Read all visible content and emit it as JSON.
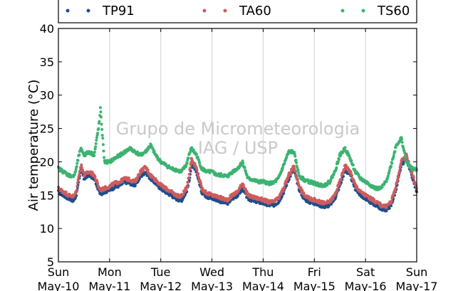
{
  "watermark": {
    "line1": "Grupo de Micrometeorologia",
    "line2": "IAG / USP"
  },
  "chart_data": {
    "type": "scatter",
    "title": "",
    "xlabel": "",
    "ylabel": "Air temperature (°C)",
    "ylim": [
      5,
      40
    ],
    "yticks": [
      5,
      10,
      15,
      20,
      25,
      30,
      35,
      40
    ],
    "xlim": [
      0,
      7
    ],
    "x_unit": "days",
    "xticks": [
      {
        "day": "Sun",
        "date": "May-10"
      },
      {
        "day": "Mon",
        "date": "May-11"
      },
      {
        "day": "Tue",
        "date": "May-12"
      },
      {
        "day": "Wed",
        "date": "May-13"
      },
      {
        "day": "Thu",
        "date": "May-14"
      },
      {
        "day": "Fri",
        "date": "May-15"
      },
      {
        "day": "Sat",
        "date": "May-16"
      },
      {
        "day": "Sun",
        "date": "May-17"
      }
    ],
    "grid": "vertical",
    "legend_position": "top",
    "series": [
      {
        "name": "TP91",
        "color": "#1f4e8c",
        "x": [
          0.0,
          0.1,
          0.2,
          0.3,
          0.35,
          0.4,
          0.45,
          0.5,
          0.6,
          0.7,
          0.8,
          0.85,
          0.9,
          1.0,
          1.1,
          1.2,
          1.3,
          1.4,
          1.5,
          1.6,
          1.7,
          1.8,
          1.9,
          2.0,
          2.1,
          2.2,
          2.3,
          2.4,
          2.5,
          2.55,
          2.6,
          2.7,
          2.8,
          2.9,
          3.0,
          3.1,
          3.2,
          3.3,
          3.4,
          3.5,
          3.6,
          3.7,
          3.8,
          3.9,
          4.0,
          4.1,
          4.2,
          4.3,
          4.4,
          4.5,
          4.6,
          4.7,
          4.8,
          4.9,
          5.0,
          5.1,
          5.2,
          5.3,
          5.4,
          5.5,
          5.6,
          5.7,
          5.8,
          5.9,
          6.0,
          6.1,
          6.2,
          6.3,
          6.4,
          6.5,
          6.6,
          6.7,
          6.8,
          6.9,
          7.0
        ],
        "y": [
          15.5,
          15.0,
          14.5,
          14.2,
          15.0,
          17.5,
          19.0,
          17.5,
          18.0,
          17.5,
          15.5,
          15.3,
          15.5,
          15.8,
          16.2,
          16.5,
          17.0,
          16.8,
          16.5,
          17.8,
          18.5,
          17.5,
          16.8,
          16.0,
          15.5,
          15.0,
          14.5,
          14.2,
          15.5,
          17.0,
          19.5,
          18.5,
          15.5,
          14.8,
          14.5,
          14.3,
          14.0,
          13.8,
          14.5,
          15.0,
          16.0,
          14.5,
          14.2,
          14.0,
          13.8,
          13.5,
          13.5,
          14.0,
          15.5,
          17.5,
          19.0,
          16.0,
          14.5,
          14.0,
          13.8,
          13.5,
          13.3,
          13.5,
          14.5,
          16.5,
          18.8,
          18.0,
          16.0,
          15.0,
          14.5,
          14.0,
          13.5,
          13.0,
          12.8,
          13.5,
          16.0,
          19.5,
          20.5,
          18.0,
          15.5
        ]
      },
      {
        "name": "TA60",
        "color": "#cd5c5c",
        "x": [
          0.0,
          0.1,
          0.2,
          0.3,
          0.35,
          0.4,
          0.45,
          0.5,
          0.6,
          0.7,
          0.8,
          0.85,
          0.9,
          1.0,
          1.1,
          1.2,
          1.3,
          1.4,
          1.5,
          1.6,
          1.7,
          1.8,
          1.9,
          2.0,
          2.1,
          2.2,
          2.3,
          2.4,
          2.5,
          2.55,
          2.6,
          2.7,
          2.8,
          2.9,
          3.0,
          3.1,
          3.2,
          3.3,
          3.4,
          3.5,
          3.6,
          3.7,
          3.8,
          3.9,
          4.0,
          4.1,
          4.2,
          4.3,
          4.4,
          4.5,
          4.6,
          4.7,
          4.8,
          4.9,
          5.0,
          5.1,
          5.2,
          5.3,
          5.4,
          5.5,
          5.6,
          5.7,
          5.8,
          5.9,
          6.0,
          6.1,
          6.2,
          6.3,
          6.4,
          6.5,
          6.6,
          6.7,
          6.8,
          6.9,
          7.0
        ],
        "y": [
          16.0,
          15.5,
          15.0,
          14.8,
          15.5,
          18.0,
          19.5,
          18.0,
          18.5,
          18.0,
          16.0,
          15.8,
          16.0,
          16.3,
          16.8,
          17.0,
          17.5,
          17.3,
          17.0,
          18.5,
          19.2,
          18.0,
          17.3,
          16.5,
          16.0,
          15.5,
          15.0,
          14.8,
          16.0,
          17.8,
          20.5,
          19.0,
          16.0,
          15.3,
          15.0,
          14.8,
          14.5,
          14.3,
          15.0,
          15.5,
          16.8,
          15.0,
          14.7,
          14.5,
          14.3,
          14.0,
          14.0,
          14.5,
          16.0,
          18.0,
          19.3,
          16.5,
          15.0,
          14.5,
          14.3,
          14.0,
          13.8,
          14.0,
          15.0,
          17.0,
          19.5,
          18.5,
          16.5,
          15.5,
          15.0,
          14.5,
          14.0,
          13.5,
          13.3,
          14.0,
          16.5,
          20.0,
          21.0,
          18.5,
          16.0
        ]
      },
      {
        "name": "TS60",
        "color": "#3cb371",
        "x": [
          0.0,
          0.1,
          0.2,
          0.3,
          0.35,
          0.4,
          0.45,
          0.5,
          0.6,
          0.7,
          0.8,
          0.82,
          0.85,
          0.9,
          1.0,
          1.1,
          1.2,
          1.3,
          1.4,
          1.5,
          1.6,
          1.7,
          1.8,
          1.9,
          2.0,
          2.1,
          2.2,
          2.3,
          2.4,
          2.5,
          2.55,
          2.6,
          2.7,
          2.8,
          2.9,
          3.0,
          3.1,
          3.2,
          3.3,
          3.4,
          3.5,
          3.6,
          3.7,
          3.8,
          3.9,
          4.0,
          4.1,
          4.2,
          4.3,
          4.4,
          4.5,
          4.6,
          4.7,
          4.8,
          4.9,
          5.0,
          5.1,
          5.2,
          5.3,
          5.4,
          5.5,
          5.6,
          5.7,
          5.8,
          5.9,
          6.0,
          6.1,
          6.2,
          6.3,
          6.4,
          6.5,
          6.6,
          6.7,
          6.8,
          6.9,
          7.0
        ],
        "y": [
          19.0,
          18.5,
          18.0,
          17.8,
          19.0,
          21.0,
          22.0,
          21.0,
          21.5,
          21.0,
          26.0,
          28.0,
          25.0,
          20.0,
          20.0,
          20.5,
          21.0,
          21.5,
          22.0,
          21.5,
          21.0,
          21.5,
          22.5,
          21.0,
          20.0,
          19.5,
          19.0,
          18.8,
          18.5,
          19.5,
          21.0,
          22.0,
          21.0,
          19.0,
          18.5,
          18.5,
          18.0,
          18.0,
          17.8,
          18.5,
          19.0,
          20.0,
          17.5,
          17.3,
          17.0,
          17.0,
          16.8,
          16.8,
          17.5,
          19.5,
          21.5,
          21.5,
          18.0,
          17.3,
          17.0,
          16.8,
          16.5,
          16.5,
          17.0,
          18.5,
          21.0,
          22.0,
          20.5,
          18.5,
          17.5,
          17.0,
          16.5,
          16.0,
          16.0,
          17.0,
          19.5,
          22.5,
          23.5,
          20.0,
          19.0,
          18.8
        ]
      }
    ]
  }
}
